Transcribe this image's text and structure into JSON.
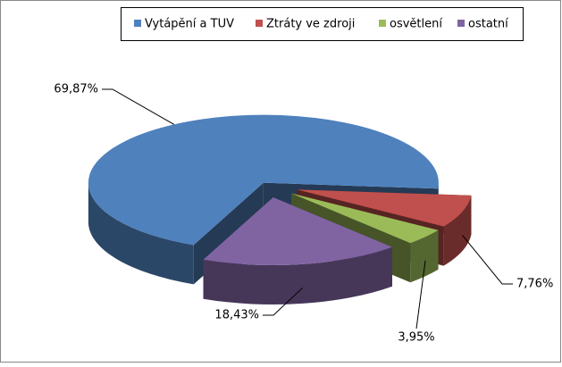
{
  "chart_data": {
    "type": "pie",
    "categories": [
      "Vytápění a TUV",
      "Ztráty ve zdroji",
      "osvětlení",
      "ostatní"
    ],
    "values": [
      69.87,
      7.76,
      3.95,
      18.43
    ],
    "value_labels": [
      "69,87%",
      "7,76%",
      "3,95%",
      "18,43%"
    ],
    "colors": [
      "#4f81bd",
      "#c0504d",
      "#9bbb59",
      "#8064a2"
    ],
    "legend": "top"
  }
}
